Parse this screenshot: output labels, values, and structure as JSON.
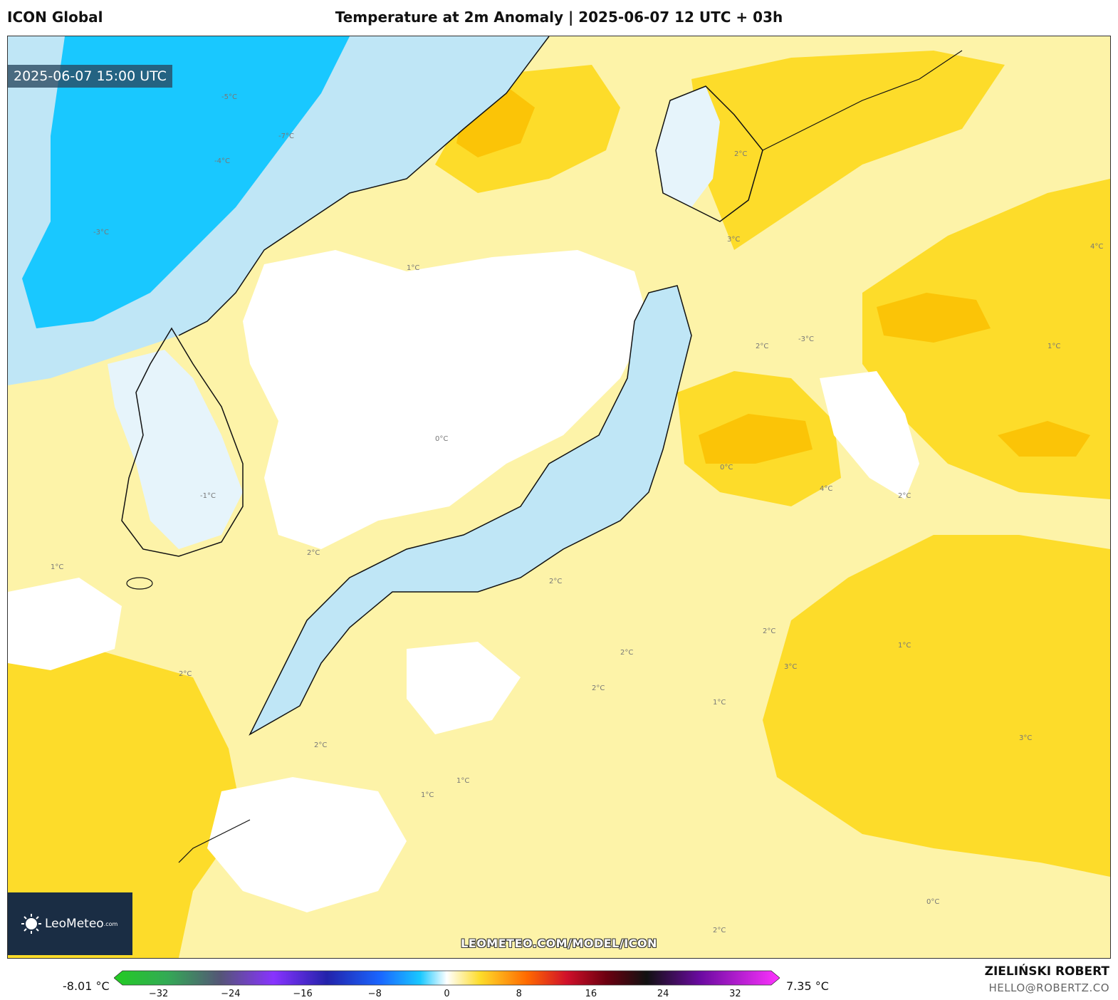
{
  "header": {
    "model": "ICON Global",
    "title": "Temperature at 2m Anomaly | 2025-06-07 12 UTC + 03h"
  },
  "map": {
    "valid_time": "2025-06-07 15:00 UTC",
    "watermark": "LEOMETEO.COM/MODEL/ICON",
    "logo": {
      "name": "LeoMeteo",
      "suffix": ".com",
      "icon": "sun-logo-icon"
    },
    "contour_labels": [
      "-5°C",
      "-4°C",
      "-3°C",
      "-7°C",
      "-1°C",
      "0°C",
      "1°C",
      "2°C",
      "3°C",
      "4°C",
      "-3°C",
      "1°C",
      "2°C",
      "0°C",
      "2°C",
      "3°C",
      "4°C",
      "1°C",
      "2°C",
      "2°C",
      "1°C",
      "2°C",
      "2°C",
      "1°C",
      "2°C",
      "0°C",
      "1°C",
      "2°C",
      "2°C",
      "1°C",
      "2°C",
      "3°C"
    ],
    "colors": {
      "cold": "#19c8ff",
      "cool": "#bfe6f6",
      "neutral": "#ffffff",
      "warm1": "#fdf3a8",
      "warm2": "#fddc2a",
      "warm3": "#fbc407"
    }
  },
  "colorbar": {
    "min_label": "-8.01 °C",
    "max_label": "7.35 °C",
    "ticks": [
      "−32",
      "−24",
      "−16",
      "−8",
      "0",
      "8",
      "16",
      "24",
      "32"
    ],
    "range": [
      -36,
      36
    ]
  },
  "author": {
    "name": "ZIELIŃSKI ROBERT",
    "email": "HELLO@ROBERTZ.CO"
  }
}
